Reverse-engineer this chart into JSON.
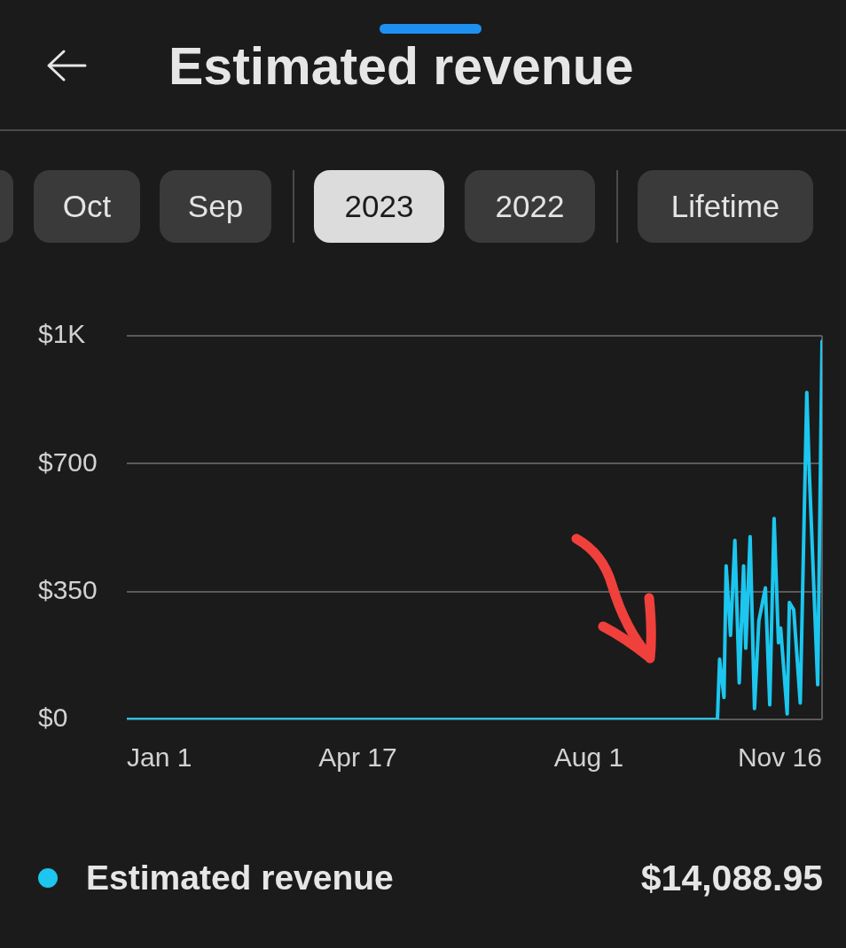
{
  "chart_data": {
    "type": "line",
    "title": "Estimated revenue",
    "series": [
      {
        "name": "Estimated revenue",
        "color": "#1cc6ee",
        "x": [
          "2023-01-01",
          "2023-09-29",
          "2023-09-30",
          "2023-10-02",
          "2023-10-03",
          "2023-10-05",
          "2023-10-07",
          "2023-10-09",
          "2023-10-11",
          "2023-10-12",
          "2023-10-14",
          "2023-10-16",
          "2023-10-18",
          "2023-10-21",
          "2023-10-23",
          "2023-10-25",
          "2023-10-27",
          "2023-10-28",
          "2023-10-31",
          "2023-11-01",
          "2023-11-03",
          "2023-11-04",
          "2023-11-06",
          "2023-11-09",
          "2023-11-10",
          "2023-11-14",
          "2023-11-16"
        ],
        "values": [
          0,
          0,
          165,
          60,
          420,
          230,
          490,
          100,
          420,
          195,
          500,
          30,
          270,
          360,
          40,
          550,
          210,
          250,
          15,
          320,
          300,
          215,
          45,
          895,
          700,
          95,
          1035
        ]
      }
    ],
    "xlim": [
      "2023-01-01",
      "2023-11-16"
    ],
    "xticks": [
      {
        "value": "2023-01-01",
        "label": "Jan 1"
      },
      {
        "value": "2023-04-17",
        "label": "Apr 17"
      },
      {
        "value": "2023-08-01",
        "label": "Aug 1"
      },
      {
        "value": "2023-11-16",
        "label": "Nov 16"
      }
    ],
    "ylim": [
      0,
      1050
    ],
    "yticks": [
      {
        "value": 0,
        "label": "$0"
      },
      {
        "value": 350,
        "label": "$350"
      },
      {
        "value": 700,
        "label": "$700"
      },
      {
        "value": 1050,
        "label": "$1K"
      }
    ],
    "grid": "y",
    "legend": "bottom",
    "marker": "none",
    "line_style": "solid",
    "annotations": [
      "Oct",
      "Sep",
      "2023",
      "2022",
      "Lifetime",
      "$14,088.95"
    ]
  }
}
